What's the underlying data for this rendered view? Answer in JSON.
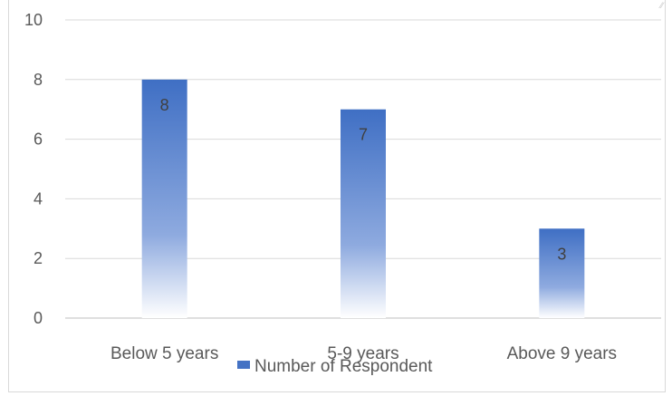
{
  "chart_data": {
    "type": "bar",
    "categories": [
      "Below 5 years",
      "5-9 years",
      "Above 9 years"
    ],
    "series": [
      {
        "name": "Number of Respondent",
        "values": [
          8,
          7,
          3
        ]
      }
    ],
    "ylim": [
      0,
      10
    ],
    "yticks": [
      0,
      2,
      4,
      6,
      8,
      10
    ],
    "grid": true,
    "legend_position": "bottom",
    "colors": {
      "bar": "#4472c4",
      "grid": "#d9d9d9",
      "text": "#595959"
    }
  }
}
